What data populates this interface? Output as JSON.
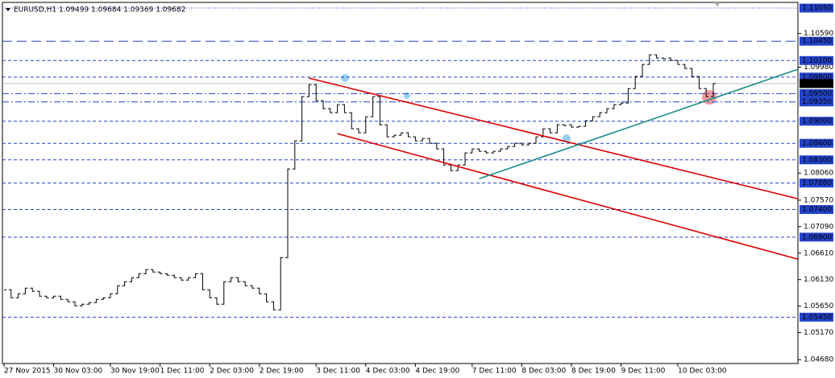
{
  "chart_data": {
    "type": "bar-line",
    "title": "EURUSD,H1  1.09499 1.09684 1.09369 1.09682",
    "categories": [
      "27 Nov 2015",
      null,
      null,
      null,
      null,
      null,
      null,
      "30 Nov 03:00",
      null,
      null,
      null,
      null,
      null,
      null,
      null,
      "30 Nov 19:00",
      null,
      null,
      null,
      null,
      null,
      null,
      "1 Dec 11:00",
      null,
      null,
      null,
      null,
      null,
      null,
      "2 Dec 03:00",
      null,
      null,
      null,
      null,
      null,
      null,
      "2 Dec 19:00",
      null,
      null,
      null,
      null,
      null,
      null,
      null,
      "3 Dec 11:00",
      null,
      null,
      null,
      null,
      null,
      null,
      "4 Dec 03:00",
      null,
      null,
      null,
      null,
      null,
      null,
      "4 Dec 19:00",
      null,
      null,
      null,
      null,
      null,
      null,
      null,
      "7 Dec 11:00",
      null,
      null,
      null,
      null,
      null,
      null,
      "8 Dec 03:00",
      null,
      null,
      null,
      null,
      null,
      null,
      "8 Dec 19:00",
      null,
      null,
      null,
      null,
      null,
      null,
      "9 Dec 11:00",
      null,
      null,
      null,
      null,
      null,
      null,
      null,
      "10 Dec 03:00",
      null,
      null,
      null,
      null,
      null
    ],
    "series": [
      {
        "name": "EURUSD",
        "color": "#000000",
        "values": [
          1.05947,
          1.05801,
          1.05874,
          1.05976,
          1.05918,
          1.0583,
          1.05801,
          1.0583,
          1.05772,
          1.05728,
          1.05655,
          1.05685,
          1.05714,
          1.05772,
          1.05801,
          1.05874,
          1.0602,
          1.06093,
          1.06166,
          1.06239,
          1.06312,
          1.06268,
          1.06239,
          1.06209,
          1.06166,
          1.06122,
          1.06166,
          1.06239,
          1.05947,
          1.05801,
          1.05685,
          1.06093,
          1.06166,
          1.06093,
          1.0602,
          1.05976,
          1.05874,
          1.05728,
          1.05583,
          1.0653,
          1.08134,
          1.08644,
          1.09446,
          1.09665,
          1.09373,
          1.09228,
          1.09155,
          1.093,
          1.09155,
          1.08863,
          1.0879,
          1.09082,
          1.09446,
          1.08936,
          1.08717,
          1.08747,
          1.0879,
          1.08717,
          1.08644,
          1.08688,
          1.08601,
          1.08499,
          1.08207,
          1.08105,
          1.08207,
          1.08426,
          1.08499,
          1.08455,
          1.08426,
          1.08455,
          1.08499,
          1.08542,
          1.08601,
          1.08571,
          1.08601,
          1.08717,
          1.08863,
          1.0879,
          1.08936,
          1.08936,
          1.08892,
          1.08907,
          1.09009,
          1.09082,
          1.09155,
          1.09228,
          1.093,
          1.0933,
          1.09592,
          1.09811,
          1.10029,
          1.10204,
          1.10146,
          1.10146,
          1.10102,
          1.10029,
          1.09956,
          1.09811,
          1.09592,
          1.09446,
          1.09682
        ]
      }
    ],
    "ylim": [
      1.0461,
      1.1108
    ],
    "yticks": [
      {
        "value": 1.1059,
        "label": "1.10590"
      },
      {
        "value": 1.0998,
        "label": "1.09980"
      },
      {
        "value": 1.0806,
        "label": "1.08060"
      },
      {
        "value": 1.0757,
        "label": "1.07570"
      },
      {
        "value": 1.0709,
        "label": "1.07090"
      },
      {
        "value": 1.0661,
        "label": "1.06610"
      },
      {
        "value": 1.0613,
        "label": "1.06130"
      },
      {
        "value": 1.0565,
        "label": "1.05650"
      },
      {
        "value": 1.0517,
        "label": "1.05170"
      },
      {
        "value": 1.0468,
        "label": "1.04680"
      }
    ],
    "levels": [
      {
        "value": 1.1105,
        "label": "1.11050",
        "style": "dot"
      },
      {
        "value": 1.1045,
        "label": "1.10450",
        "style": "longdash"
      },
      {
        "value": 1.101,
        "label": "1.10100",
        "style": "dash"
      },
      {
        "value": 1.098,
        "label": "1.09800",
        "style": "dash"
      },
      {
        "value": 1.095,
        "label": "1.09500",
        "style": "dashdot"
      },
      {
        "value": 1.0935,
        "label": "1.09350",
        "style": "dashdot"
      },
      {
        "value": 1.09,
        "label": "1.09000",
        "style": "dash"
      },
      {
        "value": 1.086,
        "label": "1.08600",
        "style": "dash"
      },
      {
        "value": 1.083,
        "label": "1.08300",
        "style": "dash"
      },
      {
        "value": 1.0788,
        "label": "1.07880",
        "style": "dash"
      },
      {
        "value": 1.074,
        "label": "1.07400",
        "style": "dash"
      },
      {
        "value": 1.069,
        "label": "1.06900",
        "style": "dash"
      },
      {
        "value": 1.0545,
        "label": "1.05450",
        "style": "dash"
      }
    ],
    "level_color": "#2343c8",
    "current_price": {
      "value": 1.09682,
      "label": "1.09682"
    },
    "lines": [
      {
        "color": "#e00000",
        "x": [
          43,
          112
        ],
        "y": [
          1.09781,
          1.07595
        ]
      },
      {
        "color": "#e00000",
        "x": [
          47,
          112
        ],
        "y": [
          1.08776,
          1.06501
        ]
      },
      {
        "color": "#1a8c8c",
        "x": [
          67,
          112
        ],
        "y": [
          1.07959,
          1.09942
        ]
      }
    ]
  }
}
